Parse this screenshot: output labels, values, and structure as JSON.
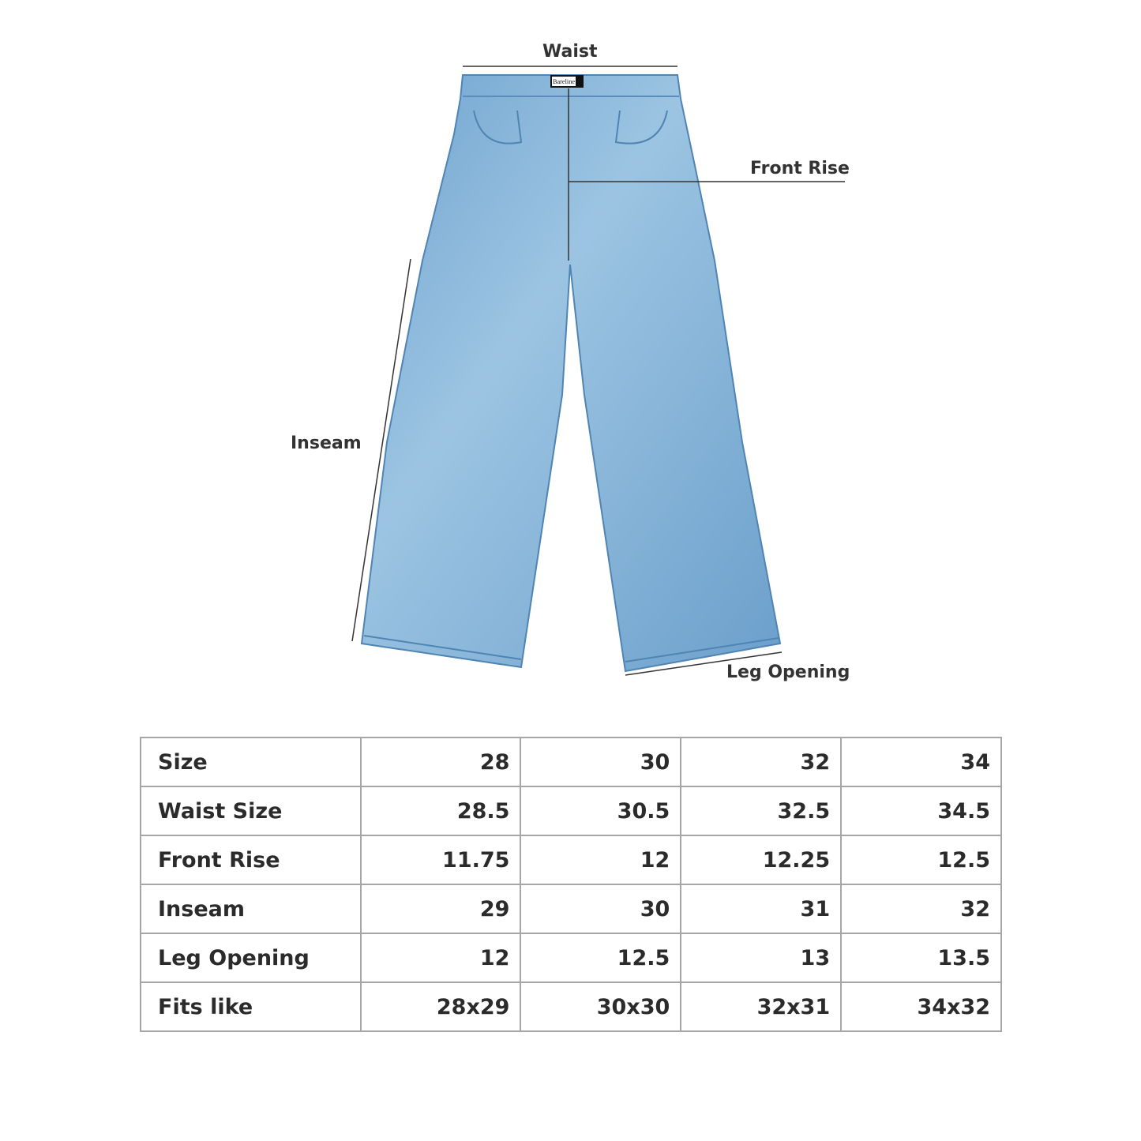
{
  "labels": {
    "waist": "Waist",
    "front_rise": "Front Rise",
    "inseam": "Inseam",
    "leg_opening": "Leg Opening"
  },
  "brand_tag": "Bareline",
  "colors": {
    "denim": "#7fb0d6",
    "denim_dark": "#5f95c2",
    "text": "#2b2b2b",
    "border": "#a6a6a6"
  },
  "table": {
    "rows": [
      {
        "label": "Size",
        "values": [
          "28",
          "30",
          "32",
          "34"
        ]
      },
      {
        "label": "Waist Size",
        "values": [
          "28.5",
          "30.5",
          "32.5",
          "34.5"
        ]
      },
      {
        "label": "Front Rise",
        "values": [
          "11.75",
          "12",
          "12.25",
          "12.5"
        ]
      },
      {
        "label": "Inseam",
        "values": [
          "29",
          "30",
          "31",
          "32"
        ]
      },
      {
        "label": "Leg Opening",
        "values": [
          "12",
          "12.5",
          "13",
          "13.5"
        ]
      },
      {
        "label": "Fits like",
        "values": [
          "28x29",
          "30x30",
          "32x31",
          "34x32"
        ]
      }
    ]
  }
}
